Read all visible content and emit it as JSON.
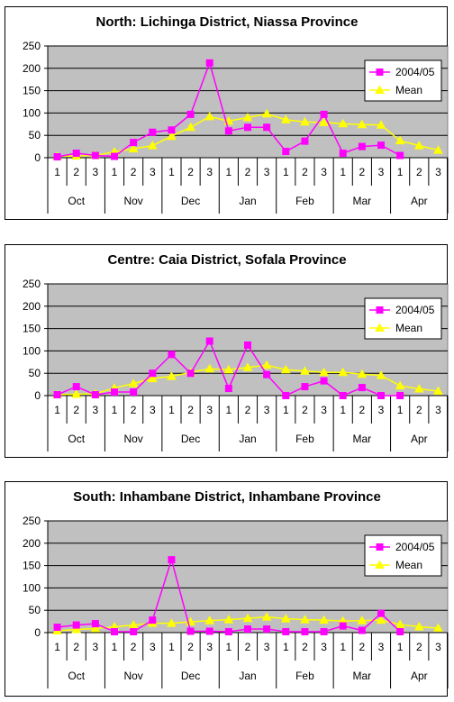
{
  "colors": {
    "plot_bg": "#c0c0c0",
    "series_2004": "#ff00ff",
    "series_mean": "#ffff00",
    "grid": "#000000"
  },
  "chart_data": [
    {
      "type": "line",
      "title": "North: Lichinga District, Niassa Province",
      "x": [
        "1",
        "2",
        "3",
        "1",
        "2",
        "3",
        "1",
        "2",
        "3",
        "1",
        "2",
        "3",
        "1",
        "2",
        "3",
        "1",
        "2",
        "3",
        "1",
        "2",
        "3"
      ],
      "groups": [
        "Oct",
        "Nov",
        "Dec",
        "Jan",
        "Feb",
        "Mar",
        "Apr"
      ],
      "ylim": [
        0,
        250
      ],
      "yticks": [
        "0",
        "50",
        "100",
        "150",
        "200",
        "250"
      ],
      "legend_position": "right",
      "series": [
        {
          "name": "2004/05",
          "values": [
            2,
            10,
            5,
            3,
            34,
            57,
            62,
            97,
            212,
            60,
            68,
            68,
            14,
            37,
            97,
            10,
            25,
            28,
            5,
            null,
            null
          ]
        },
        {
          "name": "Mean",
          "values": [
            3,
            4,
            5,
            13,
            20,
            27,
            48,
            68,
            92,
            82,
            90,
            98,
            85,
            80,
            79,
            76,
            74,
            73,
            38,
            27,
            17
          ]
        }
      ]
    },
    {
      "type": "line",
      "title": "Centre: Caia District, Sofala Province",
      "x": [
        "1",
        "2",
        "3",
        "1",
        "2",
        "3",
        "1",
        "2",
        "3",
        "1",
        "2",
        "3",
        "1",
        "2",
        "3",
        "1",
        "2",
        "3",
        "1",
        "2",
        "3"
      ],
      "groups": [
        "Oct",
        "Nov",
        "Dec",
        "Jan",
        "Feb",
        "Mar",
        "Apr"
      ],
      "ylim": [
        0,
        250
      ],
      "yticks": [
        "0",
        "50",
        "100",
        "150",
        "200",
        "250"
      ],
      "legend_position": "right",
      "series": [
        {
          "name": "2004/05",
          "values": [
            2,
            20,
            2,
            8,
            8,
            50,
            92,
            50,
            122,
            16,
            113,
            47,
            0,
            20,
            33,
            0,
            18,
            0,
            0,
            null,
            null
          ]
        },
        {
          "name": "Mean",
          "values": [
            2,
            3,
            4,
            17,
            27,
            38,
            43,
            52,
            60,
            58,
            63,
            68,
            58,
            55,
            52,
            52,
            48,
            45,
            22,
            15,
            10
          ]
        }
      ]
    },
    {
      "type": "line",
      "title": "South: Inhambane District, Inhambane Province",
      "x": [
        "1",
        "2",
        "3",
        "1",
        "2",
        "3",
        "1",
        "2",
        "3",
        "1",
        "2",
        "3",
        "1",
        "2",
        "3",
        "1",
        "2",
        "3",
        "1",
        "2",
        "3"
      ],
      "groups": [
        "Oct",
        "Nov",
        "Dec",
        "Jan",
        "Feb",
        "Mar",
        "Apr"
      ],
      "ylim": [
        0,
        250
      ],
      "yticks": [
        "0",
        "50",
        "100",
        "150",
        "200",
        "250"
      ],
      "legend_position": "right",
      "series": [
        {
          "name": "2004/05",
          "values": [
            12,
            17,
            20,
            2,
            2,
            28,
            163,
            3,
            3,
            2,
            8,
            8,
            2,
            2,
            2,
            15,
            5,
            43,
            2,
            null,
            null
          ]
        },
        {
          "name": "Mean",
          "values": [
            4,
            7,
            9,
            13,
            17,
            21,
            21,
            24,
            27,
            29,
            32,
            35,
            31,
            29,
            28,
            26,
            27,
            28,
            18,
            13,
            10
          ]
        }
      ]
    }
  ]
}
